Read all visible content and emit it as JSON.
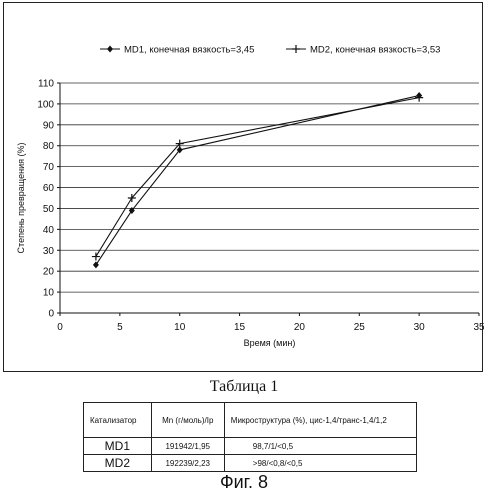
{
  "chart_data": {
    "type": "line",
    "xlabel": "Время (мин)",
    "ylabel": "Степень превращения (%)",
    "xlim": [
      0,
      35
    ],
    "ylim": [
      0,
      110
    ],
    "x_ticks": [
      "0",
      "5",
      "10",
      "15",
      "20",
      "25",
      "30",
      "35"
    ],
    "y_ticks": [
      "0",
      "10",
      "20",
      "30",
      "40",
      "50",
      "60",
      "70",
      "80",
      "90",
      "100",
      "110"
    ],
    "grid": "horizontal",
    "legend_position": "top",
    "series": [
      {
        "name": "MD1, конечная вязкость=3,45",
        "marker": "diamond",
        "x": [
          3,
          6,
          10,
          30
        ],
        "y": [
          23,
          49,
          78,
          104
        ]
      },
      {
        "name": "MD2, конечная вязкость=3,53",
        "marker": "plus",
        "x": [
          3,
          6,
          10,
          30
        ],
        "y": [
          27,
          55,
          81,
          103
        ]
      }
    ]
  },
  "table": {
    "title": "Таблица 1",
    "headers": [
      "Катализатор",
      "Mn (г/моль)/Ip",
      "Микроструктура (%), цис-1,4/транс-1,4/1,2"
    ],
    "rows": [
      [
        "MD1",
        "191942/1,95",
        "98,7/1/<0,5"
      ],
      [
        "MD2",
        "192239/2,23",
        ">98/<0,8/<0,5"
      ]
    ]
  },
  "caption": "Фиг. 8"
}
